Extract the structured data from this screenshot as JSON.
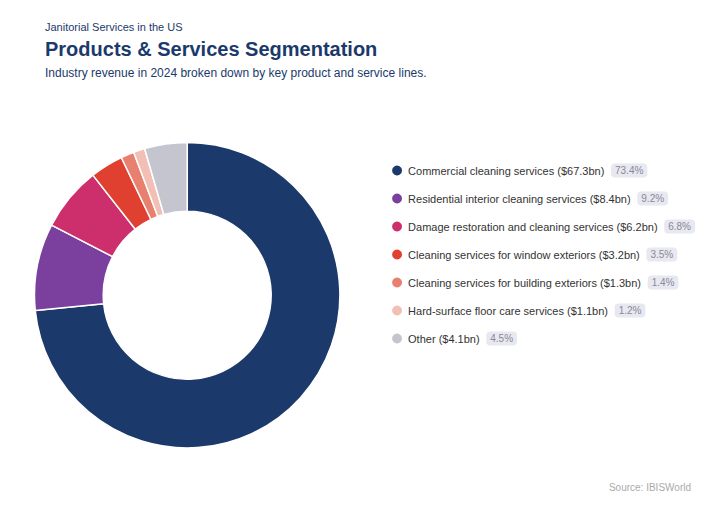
{
  "chart_data": {
    "type": "donut",
    "title": "Products & Services Segmentation",
    "subtitle": "Industry revenue in 2024 broken down by key product and service lines.",
    "annotations": [
      "Janitorial Services in the US",
      "Source: IBISWorld"
    ],
    "categories": [
      "Commercial cleaning services ($67.3bn)",
      "Residential interior cleaning services ($8.4bn)",
      "Damage restoration and cleaning services ($6.2bn)",
      "Cleaning services for window exteriors ($3.2bn)",
      "Cleaning services for building exteriors ($1.3bn)",
      "Hard-surface floor care services ($1.1bn)",
      "Other ($4.1bn)"
    ],
    "values": [
      73.4,
      9.2,
      6.8,
      3.5,
      1.4,
      1.2,
      4.5
    ],
    "value_labels": [
      "73.4%",
      "9.2%",
      "6.8%",
      "3.5%",
      "1.4%",
      "1.2%",
      "4.5%"
    ],
    "colors": [
      "#1b3a6b",
      "#7b3f9e",
      "#cc2f6b",
      "#e04030",
      "#e88070",
      "#f2bfb5",
      "#c5c5d0"
    ],
    "legend": "right"
  }
}
